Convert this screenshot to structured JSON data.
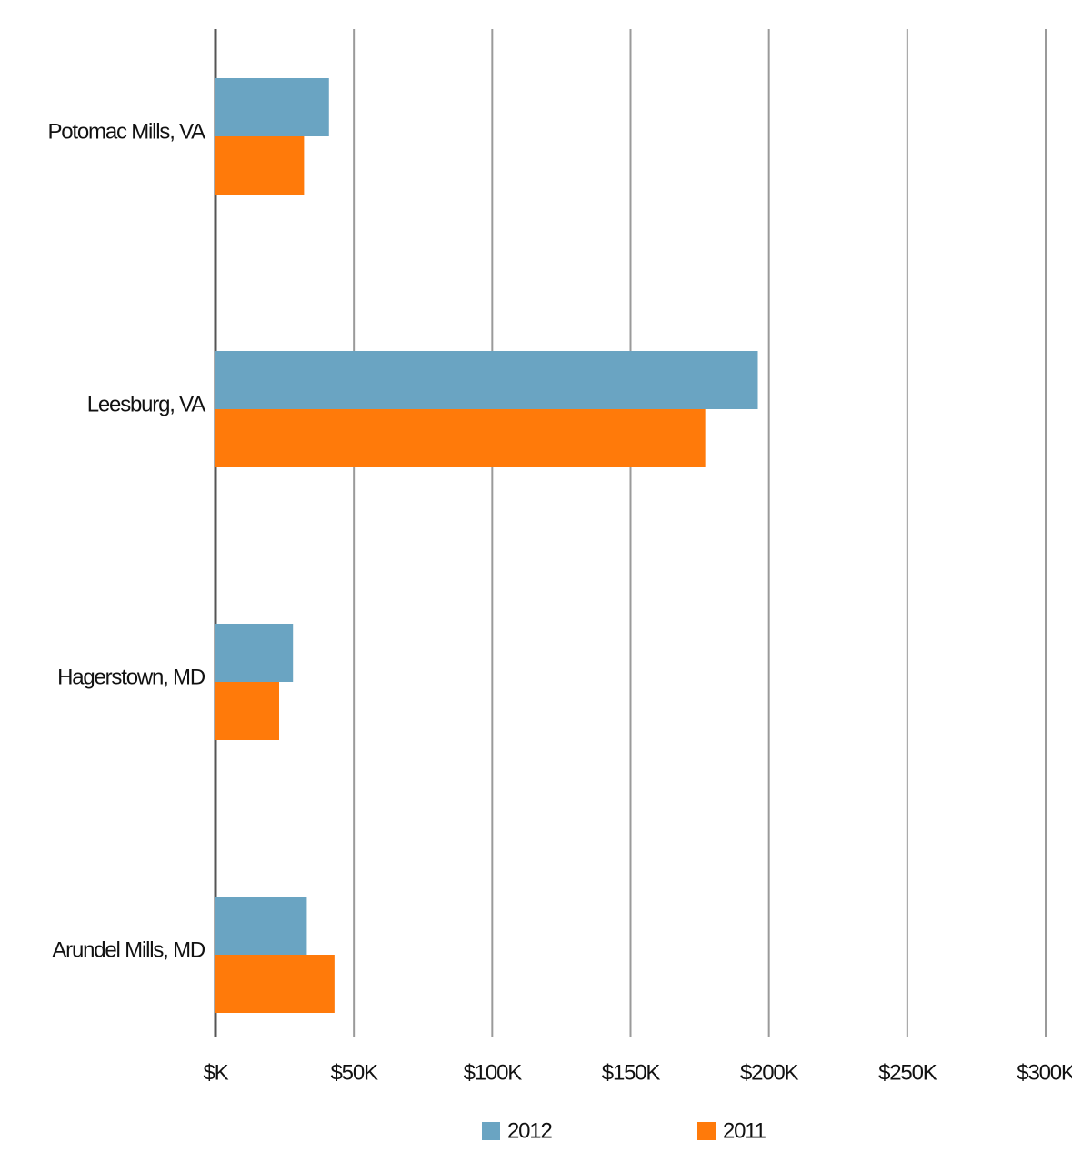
{
  "chart_data": {
    "type": "barh",
    "categories": [
      "Potomac Mills, VA",
      "Leesburg, VA",
      "Hagerstown, MD",
      "Arundel Mills, MD"
    ],
    "series": [
      {
        "name": "2012",
        "color": "#6aa4c2",
        "values": [
          41000,
          196000,
          28000,
          33000
        ]
      },
      {
        "name": "2011",
        "color": "#ff7a0a",
        "values": [
          32000,
          177000,
          23000,
          43000
        ]
      }
    ],
    "xlim": [
      0,
      300000
    ],
    "xticks": [
      {
        "value": 0,
        "label": "$K"
      },
      {
        "value": 50000,
        "label": "$50K"
      },
      {
        "value": 100000,
        "label": "$100K"
      },
      {
        "value": 150000,
        "label": "$150K"
      },
      {
        "value": 200000,
        "label": "$200K"
      },
      {
        "value": 250000,
        "label": "$250K"
      },
      {
        "value": 300000,
        "label": "$300K"
      }
    ],
    "grid": true
  }
}
